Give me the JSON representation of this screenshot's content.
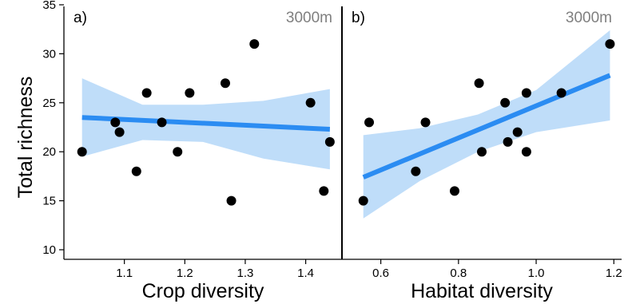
{
  "chart_data": {
    "type": "scatter",
    "ylabel": "Total richness",
    "ylim": [
      10,
      35
    ],
    "y_ticks": [
      10,
      15,
      20,
      25,
      30,
      35
    ],
    "y_tick_labels": [
      "10",
      "15",
      "20",
      "25",
      "30",
      "35"
    ],
    "point_color": "#000000",
    "fit_color": "#2B8CF2",
    "band_color": "#BFDDF9",
    "panels": [
      {
        "tag": "a)",
        "note": "3000m",
        "xlabel": "Crop diversity",
        "xlim": [
          1.0,
          1.46
        ],
        "x_ticks": [
          1.1,
          1.2,
          1.3,
          1.4
        ],
        "x_tick_labels": [
          "1.1",
          "1.2",
          "1.3",
          "1.4"
        ],
        "points": [
          {
            "x": 1.03,
            "y": 20
          },
          {
            "x": 1.085,
            "y": 23
          },
          {
            "x": 1.092,
            "y": 22
          },
          {
            "x": 1.12,
            "y": 18
          },
          {
            "x": 1.137,
            "y": 26
          },
          {
            "x": 1.162,
            "y": 23
          },
          {
            "x": 1.188,
            "y": 20
          },
          {
            "x": 1.208,
            "y": 26
          },
          {
            "x": 1.267,
            "y": 27
          },
          {
            "x": 1.277,
            "y": 15
          },
          {
            "x": 1.315,
            "y": 31
          },
          {
            "x": 1.408,
            "y": 25
          },
          {
            "x": 1.43,
            "y": 16
          },
          {
            "x": 1.44,
            "y": 21
          }
        ],
        "fit": {
          "x": [
            1.03,
            1.44
          ],
          "y": [
            23.5,
            22.3
          ]
        },
        "band": {
          "x": [
            1.03,
            1.13,
            1.23,
            1.33,
            1.44
          ],
          "lower": [
            19.5,
            21.2,
            21.0,
            19.3,
            18.2
          ],
          "upper": [
            27.5,
            24.8,
            24.8,
            25.2,
            26.4
          ]
        }
      },
      {
        "tag": "b)",
        "note": "3000m",
        "xlabel": "Habitat diversity",
        "xlim": [
          0.5,
          1.22
        ],
        "x_ticks": [
          0.6,
          0.8,
          1.0,
          1.2
        ],
        "x_tick_labels": [
          "0.6",
          "0.8",
          "1.0",
          "1.2"
        ],
        "points": [
          {
            "x": 0.555,
            "y": 15
          },
          {
            "x": 0.57,
            "y": 23
          },
          {
            "x": 0.69,
            "y": 18
          },
          {
            "x": 0.715,
            "y": 23
          },
          {
            "x": 0.79,
            "y": 16
          },
          {
            "x": 0.853,
            "y": 27
          },
          {
            "x": 0.86,
            "y": 20
          },
          {
            "x": 0.92,
            "y": 25
          },
          {
            "x": 0.927,
            "y": 21
          },
          {
            "x": 0.952,
            "y": 22
          },
          {
            "x": 0.975,
            "y": 26
          },
          {
            "x": 0.975,
            "y": 20
          },
          {
            "x": 1.065,
            "y": 26
          },
          {
            "x": 1.19,
            "y": 31
          }
        ],
        "fit": {
          "x": [
            0.555,
            1.19
          ],
          "y": [
            17.4,
            27.8
          ]
        },
        "band": {
          "x": [
            0.555,
            0.7,
            0.85,
            1.0,
            1.19
          ],
          "lower": [
            13.2,
            17.0,
            20.0,
            22.0,
            23.2
          ],
          "upper": [
            21.7,
            22.4,
            23.8,
            26.3,
            32.4
          ]
        }
      }
    ]
  }
}
